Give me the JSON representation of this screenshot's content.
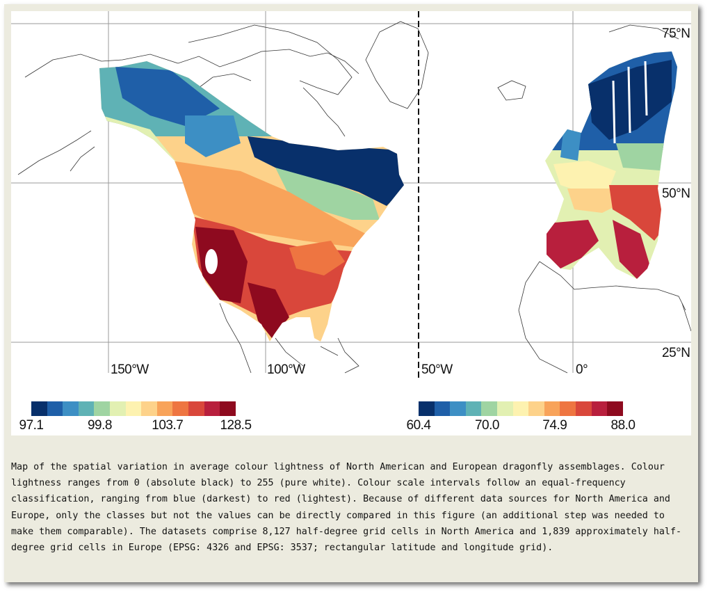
{
  "map": {
    "latitude_labels": [
      "75°N",
      "50°N",
      "25°N"
    ],
    "longitude_labels": [
      "150°W",
      "100°W",
      "50°W",
      "0°"
    ]
  },
  "legends": {
    "north_america": {
      "tick_labels": [
        "97.1",
        "99.8",
        "103.7",
        "128.5"
      ],
      "colors": [
        "#08306b",
        "#1f5fa8",
        "#3d8fc4",
        "#5fb2b5",
        "#9fd4a2",
        "#e2f0b2",
        "#fdf2b0",
        "#fdd28a",
        "#f8a35a",
        "#ee7541",
        "#d9473b",
        "#b81f3d",
        "#8e0a1f"
      ]
    },
    "europe": {
      "tick_labels": [
        "60.4",
        "70.0",
        "74.9",
        "88.0"
      ],
      "colors": [
        "#08306b",
        "#1f5fa8",
        "#3d8fc4",
        "#5fb2b5",
        "#9fd4a2",
        "#e2f0b2",
        "#fdf2b0",
        "#fdd28a",
        "#f8a35a",
        "#ee7541",
        "#d9473b",
        "#b81f3d",
        "#8e0a1f"
      ]
    }
  },
  "caption": "Map of the spatial variation in average colour lightness of North American and European dragonfly assemblages. Colour lightness ranges from 0 (absolute black) to 255 (pure white). Colour scale intervals follow an equal-frequency classification, ranging from blue (darkest) to red (lightest). Because of different data sources for North America and Europe, only the classes but not the values can be directly compared in this figure (an additional step was needed to make them comparable). The datasets comprise 8,127 half-degree grid cells in North America and 1,839 approximately half-degree grid cells in Europe (EPSG: 4326 and EPSG: 3537; rectangular latitude and longitude grid)."
}
